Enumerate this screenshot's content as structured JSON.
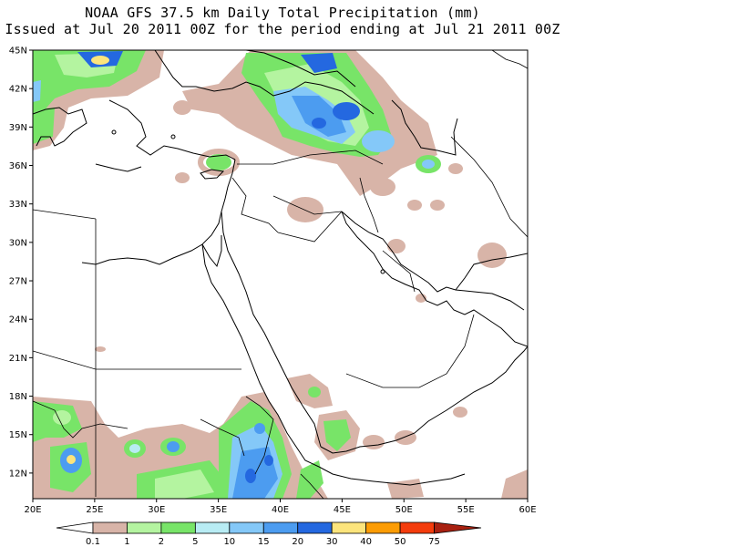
{
  "header": {
    "title_line1": "NOAA GFS 37.5 km Daily Total Precipitation (mm)",
    "title_line2": "Issued at Jul 20 2011 00Z for the period ending at Jul 21 2011 00Z"
  },
  "map": {
    "lat_labels": [
      "45N",
      "42N",
      "39N",
      "36N",
      "33N",
      "30N",
      "27N",
      "24N",
      "21N",
      "18N",
      "15N",
      "12N"
    ],
    "lon_labels": [
      "20E",
      "25E",
      "30E",
      "35E",
      "40E",
      "45E",
      "50E",
      "55E",
      "60E"
    ],
    "lat_range": [
      10,
      45
    ],
    "lon_range": [
      20,
      60
    ]
  },
  "legend": {
    "bins": [
      {
        "color": "#d8b4a8"
      },
      {
        "color": "#b4f4a0"
      },
      {
        "color": "#78e468"
      },
      {
        "color": "#b8ecf4"
      },
      {
        "color": "#84c8f8"
      },
      {
        "color": "#4c9cf0"
      },
      {
        "color": "#2468e0"
      },
      {
        "color": "#fce47c"
      },
      {
        "color": "#fc9c04"
      },
      {
        "color": "#f43c0c"
      },
      {
        "color": "#a82010"
      }
    ],
    "labels": [
      "0.1",
      "1",
      "2",
      "5",
      "10",
      "15",
      "20",
      "30",
      "40",
      "50",
      "75"
    ]
  }
}
